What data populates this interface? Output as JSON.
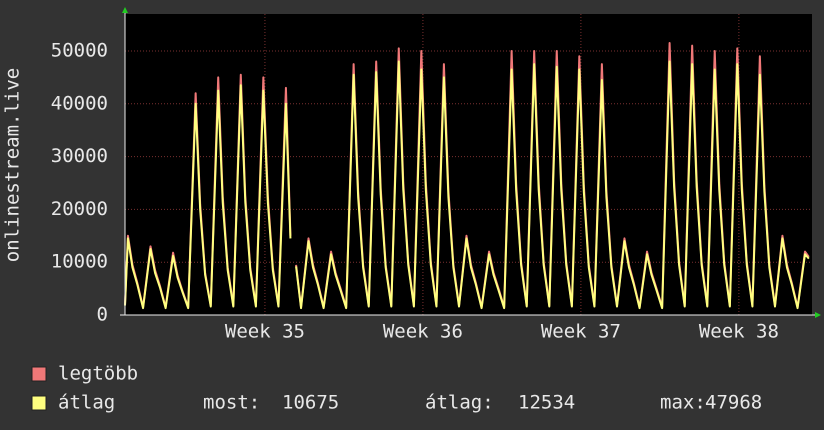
{
  "chart_data": {
    "type": "line",
    "y_label": "onlinestream.live",
    "ylim": [
      0,
      57000
    ],
    "yticks": [
      0,
      10000,
      20000,
      30000,
      40000,
      50000
    ],
    "xlim": [
      0,
      30.44
    ],
    "xticks": [
      {
        "value": 6.2,
        "label": "Week 35"
      },
      {
        "value": 13.2,
        "label": "Week 36"
      },
      {
        "value": 20.2,
        "label": "Week 37"
      },
      {
        "value": 27.2,
        "label": "Week 38"
      }
    ],
    "grid": true,
    "x": [
      0,
      0.13,
      0.33,
      0.55,
      0.8,
      1.13,
      1.33,
      1.55,
      1.8,
      2.13,
      2.33,
      2.55,
      2.8,
      3.13,
      3.33,
      3.55,
      3.8,
      4.13,
      4.33,
      4.55,
      4.8,
      5.13,
      5.33,
      5.55,
      5.8,
      6.13,
      6.33,
      6.55,
      6.8,
      7.13,
      7.33,
      7.45,
      7.58,
      7.8,
      8.13,
      8.33,
      8.55,
      8.8,
      9.13,
      9.33,
      9.55,
      9.8,
      10.13,
      10.33,
      10.55,
      10.8,
      11.13,
      11.33,
      11.55,
      11.8,
      12.13,
      12.33,
      12.55,
      12.8,
      13.13,
      13.33,
      13.55,
      13.8,
      14.13,
      14.33,
      14.55,
      14.8,
      15.13,
      15.33,
      15.55,
      15.8,
      16.13,
      16.33,
      16.55,
      16.8,
      17.13,
      17.33,
      17.55,
      17.8,
      18.13,
      18.33,
      18.55,
      18.8,
      19.13,
      19.33,
      19.55,
      19.8,
      20.13,
      20.33,
      20.55,
      20.8,
      21.13,
      21.33,
      21.55,
      21.8,
      22.13,
      22.33,
      22.55,
      22.8,
      23.13,
      23.33,
      23.55,
      23.8,
      24.13,
      24.33,
      24.55,
      24.8,
      25.13,
      25.33,
      25.55,
      25.8,
      26.13,
      26.33,
      26.55,
      26.8,
      27.13,
      27.33,
      27.55,
      27.8,
      28.13,
      28.33,
      28.55,
      28.8,
      29.13,
      29.33,
      29.55,
      29.8,
      30.13,
      30.3
    ],
    "series": [
      {
        "name": "legtöbb",
        "color": "#f07878",
        "values": [
          2000,
          15000,
          9500,
          6000,
          1500,
          13000,
          8500,
          5500,
          1500,
          11800,
          7500,
          4500,
          1500,
          42000,
          21000,
          8000,
          1800,
          45000,
          22500,
          9000,
          1800,
          45500,
          22500,
          9000,
          1800,
          45000,
          22500,
          9000,
          1800,
          43000,
          15000,
          null,
          9500,
          1500,
          14500,
          9500,
          6000,
          1500,
          12000,
          8000,
          5000,
          1500,
          47500,
          23500,
          9500,
          1800,
          48000,
          24000,
          9500,
          1800,
          50500,
          25000,
          10000,
          1800,
          50000,
          25000,
          10000,
          1800,
          47500,
          23500,
          9500,
          1800,
          15000,
          9500,
          6000,
          1500,
          12000,
          8000,
          5000,
          1500,
          50000,
          25000,
          10000,
          1800,
          50000,
          25000,
          10000,
          1800,
          50000,
          25000,
          10000,
          1800,
          49000,
          24500,
          9500,
          1800,
          47500,
          23500,
          9500,
          1800,
          14500,
          9500,
          6000,
          1500,
          12000,
          8000,
          5000,
          1500,
          51500,
          25500,
          10000,
          1800,
          51000,
          25500,
          10000,
          1800,
          50000,
          25000,
          10000,
          1800,
          50500,
          25000,
          10000,
          1800,
          49000,
          24500,
          9500,
          1800,
          15000,
          9500,
          6000,
          1500,
          12000,
          11000
        ]
      },
      {
        "name": "átlag",
        "color": "#ffff80",
        "values": [
          1800,
          14500,
          9000,
          5700,
          1300,
          12500,
          8000,
          5200,
          1300,
          11200,
          7100,
          4300,
          1300,
          40000,
          20000,
          7600,
          1600,
          42500,
          21300,
          8500,
          1600,
          43500,
          21400,
          8500,
          1600,
          42500,
          21300,
          8500,
          1600,
          40000,
          14500,
          null,
          9200,
          1300,
          14000,
          9000,
          5700,
          1300,
          11500,
          7600,
          4700,
          1300,
          45500,
          22300,
          9000,
          1600,
          46000,
          22800,
          9000,
          1600,
          48000,
          23700,
          9500,
          1600,
          46500,
          23700,
          9500,
          1600,
          45000,
          22300,
          9000,
          1600,
          14500,
          9000,
          5700,
          1300,
          11500,
          7600,
          4700,
          1300,
          46500,
          23700,
          9500,
          1600,
          47500,
          23700,
          9500,
          1600,
          47000,
          23700,
          9500,
          1600,
          46500,
          23300,
          9000,
          1600,
          44500,
          22300,
          9000,
          1600,
          14000,
          9000,
          5700,
          1300,
          11500,
          7600,
          4700,
          1300,
          48000,
          24200,
          9500,
          1600,
          47500,
          24200,
          9500,
          1600,
          46500,
          23700,
          9500,
          1600,
          47500,
          23700,
          9500,
          1600,
          45500,
          23300,
          9000,
          1600,
          14500,
          9000,
          5700,
          1300,
          11500,
          10675
        ]
      }
    ],
    "stats": [
      {
        "label": "most:",
        "value": 10675
      },
      {
        "label": "átlag:",
        "value": 12534
      },
      {
        "label": "max:",
        "value": 47968
      }
    ]
  }
}
